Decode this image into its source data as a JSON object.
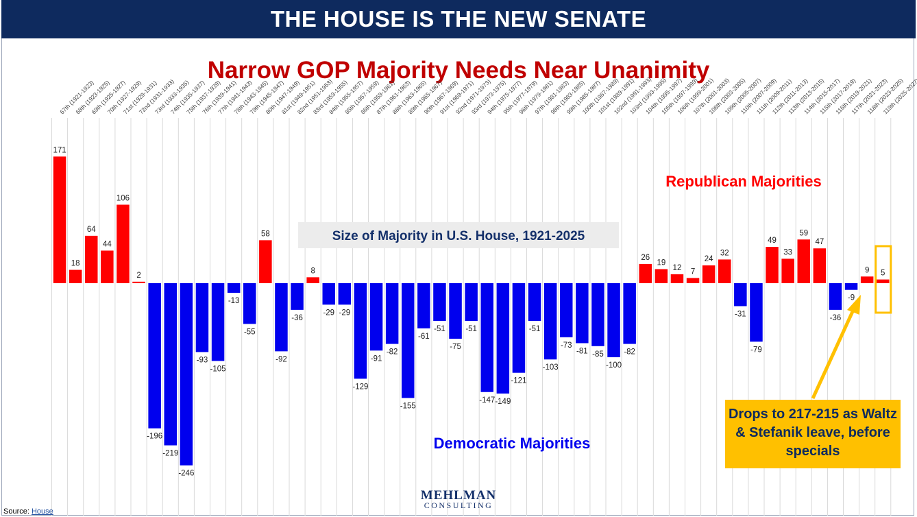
{
  "header": {
    "banner_title": "THE HOUSE IS THE NEW SENATE",
    "subtitle": "Narrow GOP Majority Needs Near Unanimity"
  },
  "colors": {
    "banner_bg": "#0e2a5e",
    "republican": "#ff0000",
    "democratic": "#0000ee",
    "subtitle": "#c00000",
    "callout_bg": "#ffc000",
    "highlight_box": "#ffc000"
  },
  "chart_data": {
    "type": "bar",
    "title": "Size of Majority in U.S. House, 1921-2025",
    "categories": [
      "67th (1921-1923)",
      "68th (1923-1925)",
      "69th (1925-1927)",
      "70th (1927-1929)",
      "71st (1929-1931)",
      "72nd (1931-1933)",
      "73rd (1933-1935)",
      "74th (1935-1937)",
      "75th (1937-1939)",
      "76th (1939-1941)",
      "77th (1941-1943)",
      "78th (1943-1945)",
      "79th (1945-1947)",
      "80th (1947-1949)",
      "81st (1949-1951)",
      "82nd (1951-1953)",
      "83rd (1953-1955)",
      "84th (1955-1957)",
      "85th (1957-1959)",
      "86th (1959-1961)",
      "87th (1961-1963)",
      "88th (1963-1965)",
      "89th (1965-1967)",
      "90th (1967-1969)",
      "91st (1969-1971)",
      "92nd (1971-1973)",
      "93rd (1973-1975)",
      "94th (1975-1977)",
      "95th (1977-1979)",
      "96th (1979-1981)",
      "97th (1981-1983)",
      "98th (1983-1985)",
      "99th (1985-1987)",
      "100th (1987-1989)",
      "101st (1989-1991)",
      "102nd (1991-1993)",
      "103rd (1993-1995)",
      "104th (1995-1997)",
      "105th (1997-1999)",
      "106th (1999-2001)",
      "107th (2001-2003)",
      "108th (2003-2005)",
      "109th (2005-2007)",
      "110th (2007-2009)",
      "111th (2009-2011)",
      "112th (2011-2013)",
      "113th (2013-2015)",
      "114th (2015-2017)",
      "115th (2017-2019)",
      "116th (2019-2021)",
      "117th (2021-2023)",
      "118th (2023-2025)",
      "119th (2025-2027)"
    ],
    "values": [
      171,
      18,
      64,
      44,
      106,
      2,
      -196,
      -219,
      -246,
      -93,
      -105,
      -13,
      -55,
      58,
      -92,
      -36,
      8,
      -29,
      -29,
      -129,
      -91,
      -82,
      -155,
      -61,
      -51,
      -75,
      -51,
      -147,
      -149,
      -121,
      -51,
      -103,
      -73,
      -81,
      -85,
      -100,
      -82,
      26,
      19,
      12,
      7,
      24,
      32,
      -31,
      -79,
      49,
      33,
      59,
      47,
      -36,
      -9,
      9,
      5
    ],
    "positive_label": "Republican Majorities",
    "negative_label": "Democratic Majorities",
    "ylim": [
      -275,
      180
    ],
    "grid": "vertical",
    "legend": "none"
  },
  "callout": {
    "text": "Drops to 217-215 as Waltz & Stefanik leave, before specials"
  },
  "footer": {
    "source_prefix": "Source: ",
    "source_link": "House",
    "logo_line1": "MEHLMAN",
    "logo_line2": "CONSULTING"
  }
}
